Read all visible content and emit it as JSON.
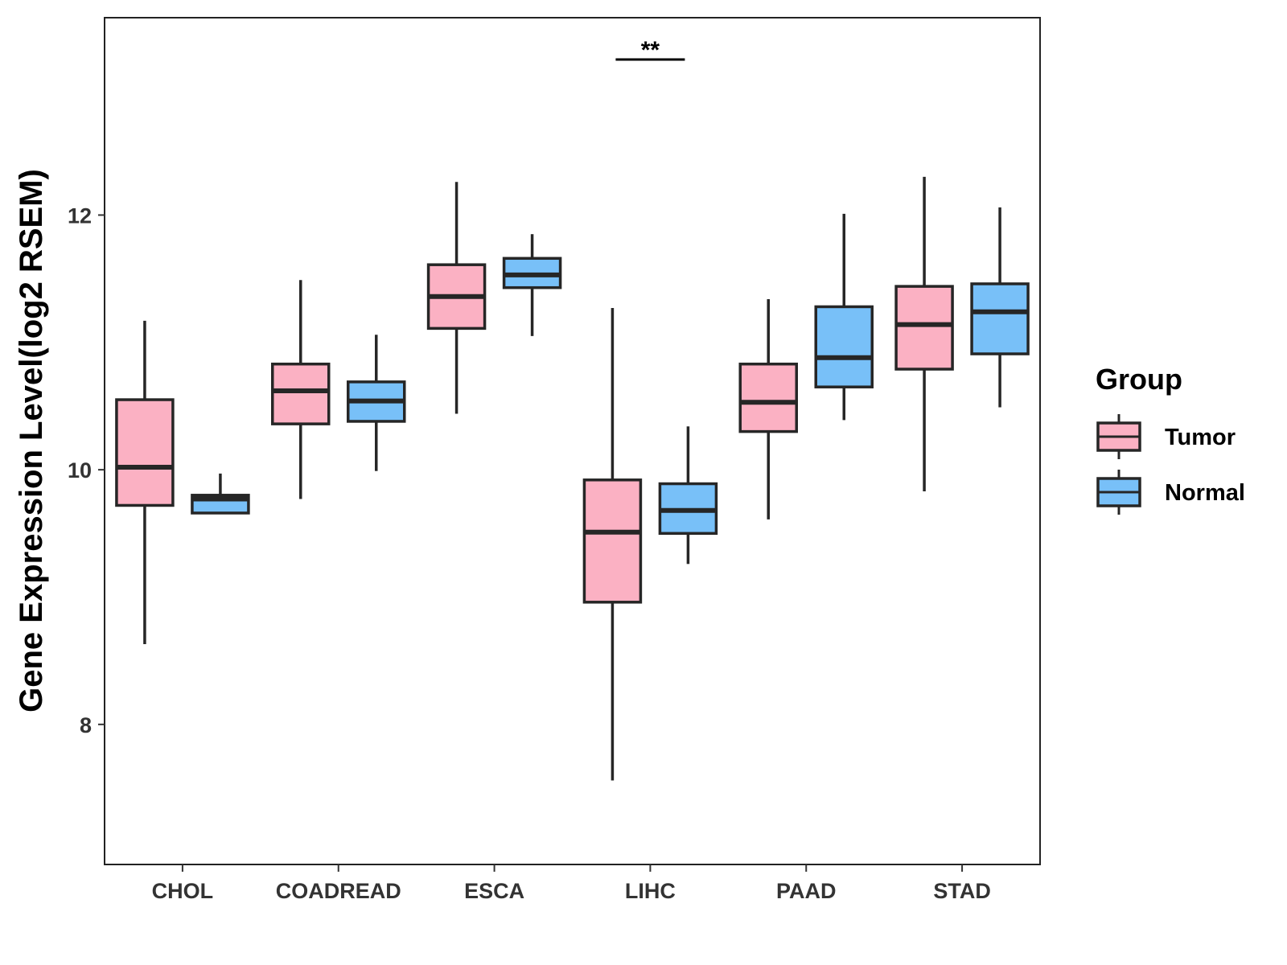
{
  "chart_data": {
    "type": "boxplot",
    "title": "",
    "xlabel": "",
    "ylabel": "Gene Expression Level(log2 RSEM)",
    "ylim": [
      6.9,
      13.55
    ],
    "yticks": [
      8,
      10,
      12
    ],
    "ytick_labels": [
      "8",
      "10",
      "12"
    ],
    "grid": false,
    "legend": {
      "title": "Group",
      "position": "right",
      "entries": [
        {
          "name": "Tumor",
          "color": "#FBB1C3"
        },
        {
          "name": "Normal",
          "color": "#78C0F8"
        }
      ]
    },
    "categories": [
      "CHOL",
      "COADREAD",
      "ESCA",
      "LIHC",
      "PAAD",
      "STAD"
    ],
    "series": [
      {
        "name": "Tumor",
        "color": "#FBB1C3",
        "boxes": [
          {
            "low": 8.63,
            "q1": 9.72,
            "median": 10.02,
            "q3": 10.55,
            "high": 11.17
          },
          {
            "low": 9.77,
            "q1": 10.36,
            "median": 10.62,
            "q3": 10.83,
            "high": 11.49
          },
          {
            "low": 10.44,
            "q1": 11.11,
            "median": 11.36,
            "q3": 11.61,
            "high": 12.26
          },
          {
            "low": 7.56,
            "q1": 8.96,
            "median": 9.51,
            "q3": 9.92,
            "high": 11.27
          },
          {
            "low": 9.61,
            "q1": 10.3,
            "median": 10.53,
            "q3": 10.83,
            "high": 11.34
          },
          {
            "low": 9.83,
            "q1": 10.79,
            "median": 11.14,
            "q3": 11.44,
            "high": 12.3
          }
        ]
      },
      {
        "name": "Normal",
        "color": "#78C0F8",
        "boxes": [
          {
            "low": 9.66,
            "q1": 9.66,
            "median": 9.77,
            "q3": 9.8,
            "high": 9.97
          },
          {
            "low": 9.99,
            "q1": 10.38,
            "median": 10.54,
            "q3": 10.69,
            "high": 11.06
          },
          {
            "low": 11.05,
            "q1": 11.43,
            "median": 11.53,
            "q3": 11.66,
            "high": 11.85
          },
          {
            "low": 9.26,
            "q1": 9.5,
            "median": 9.68,
            "q3": 9.89,
            "high": 10.34
          },
          {
            "low": 10.39,
            "q1": 10.65,
            "median": 10.88,
            "q3": 11.28,
            "high": 12.01
          },
          {
            "low": 10.49,
            "q1": 10.91,
            "median": 11.24,
            "q3": 11.46,
            "high": 12.06
          }
        ]
      }
    ],
    "annotations": [
      {
        "category": "LIHC",
        "text": "**"
      }
    ]
  }
}
